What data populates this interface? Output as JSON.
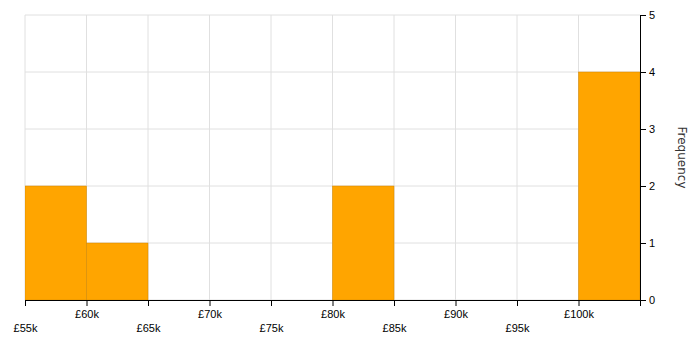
{
  "chart_data": {
    "type": "histogram",
    "bins": [
      55000,
      60000,
      65000,
      70000,
      75000,
      80000,
      85000,
      90000,
      95000,
      100000,
      105000
    ],
    "values": [
      2,
      1,
      0,
      0,
      0,
      2,
      0,
      0,
      0,
      4
    ],
    "color": "#FFA500",
    "ylabel": "Frequency",
    "xlim": [
      55000,
      105000
    ],
    "xticks": [
      {
        "value": 55000,
        "label": "£55k"
      },
      {
        "value": 60000,
        "label": "£60k"
      },
      {
        "value": 65000,
        "label": "£65k"
      },
      {
        "value": 70000,
        "label": "£70k"
      },
      {
        "value": 75000,
        "label": "£75k"
      },
      {
        "value": 80000,
        "label": "£80k"
      },
      {
        "value": 85000,
        "label": "£85k"
      },
      {
        "value": 90000,
        "label": "£90k"
      },
      {
        "value": 95000,
        "label": "£95k"
      },
      {
        "value": 100000,
        "label": "£100k"
      }
    ],
    "ylim": [
      0,
      5
    ],
    "yticks": [
      0,
      1,
      2,
      3,
      4,
      5
    ],
    "grid": true
  }
}
